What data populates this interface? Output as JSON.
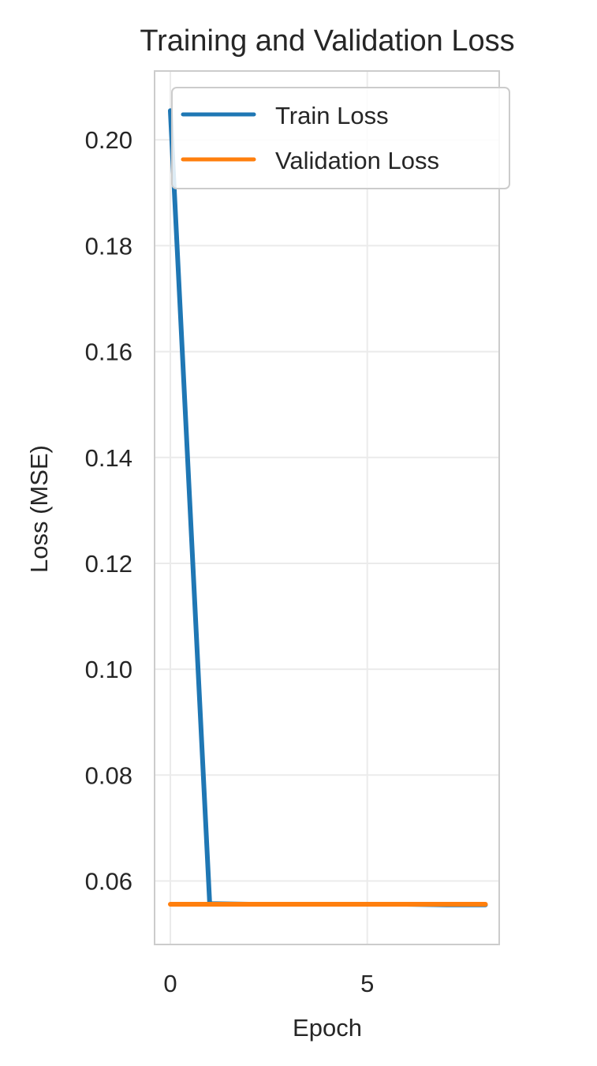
{
  "chart_data": {
    "type": "line",
    "title": "Training and Validation Loss",
    "xlabel": "Epoch",
    "ylabel": "Loss (MSE)",
    "xlim": [
      -0.4,
      8.35
    ],
    "ylim": [
      0.048,
      0.213
    ],
    "xticks": [
      0,
      5
    ],
    "xtick_labels": [
      "0",
      "5"
    ],
    "yticks": [
      0.06,
      0.08,
      0.1,
      0.12,
      0.14,
      0.16,
      0.18,
      0.2
    ],
    "ytick_labels": [
      "0.06",
      "0.08",
      "0.10",
      "0.12",
      "0.14",
      "0.16",
      "0.18",
      "0.20"
    ],
    "grid": true,
    "legend_position": "top-right",
    "x": [
      0,
      1,
      2,
      3,
      4,
      5,
      6,
      7,
      8
    ],
    "series": [
      {
        "name": "Train Loss",
        "color": "#1f77b4",
        "values": [
          0.2055,
          0.0557,
          0.0556,
          0.0556,
          0.0556,
          0.0556,
          0.0556,
          0.0555,
          0.0555
        ]
      },
      {
        "name": "Validation Loss",
        "color": "#ff7f0e",
        "values": [
          0.0556,
          0.0556,
          0.0556,
          0.0556,
          0.0556,
          0.0556,
          0.0556,
          0.0556,
          0.0556
        ]
      }
    ]
  }
}
